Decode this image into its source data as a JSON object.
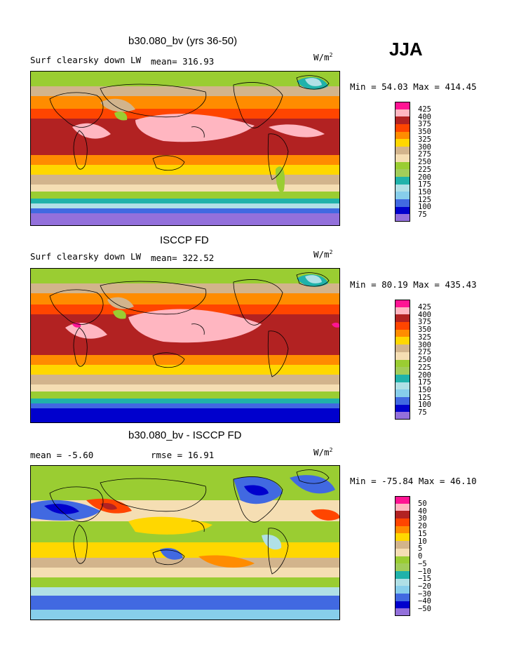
{
  "season": "JJA",
  "units_base": "W/m",
  "units_exp": "2",
  "palette": {
    "p425": "#ff1493",
    "p400": "#ffb6c1",
    "p375": "#b22222",
    "p350": "#ff4500",
    "p325": "#ff8c00",
    "p300": "#ffd700",
    "p275": "#d2b48c",
    "p250": "#f5deb3",
    "p225": "#9acd32",
    "p200": "#a2cd5a",
    "p175": "#20b2aa",
    "p150": "#b0e0e6",
    "p125": "#87ceeb",
    "p100": "#4169e1",
    "p75": "#0000cd",
    "p50": "#9370db"
  },
  "panels": [
    {
      "title": "b30.080_bv (yrs 36-50)",
      "field": "Surf clearsky down LW",
      "stat1": "mean= 316.93",
      "stat2": "",
      "minmax": "Min =  54.03 Max = 414.45",
      "levels": [
        "425",
        "400",
        "375",
        "350",
        "325",
        "300",
        "275",
        "250",
        "225",
        "200",
        "175",
        "150",
        "125",
        "100",
        "75"
      ]
    },
    {
      "title": "ISCCP FD",
      "field": "Surf clearsky down LW",
      "stat1": "mean= 322.52",
      "stat2": "",
      "minmax": "Min =  80.19 Max = 435.43",
      "levels": [
        "425",
        "400",
        "375",
        "350",
        "325",
        "300",
        "275",
        "250",
        "225",
        "200",
        "175",
        "150",
        "125",
        "100",
        "75"
      ]
    },
    {
      "title": "b30.080_bv - ISCCP FD",
      "field": "",
      "stat1": "mean =  -5.60",
      "stat2": "rmse =  16.91",
      "minmax": "Min = -75.84 Max =  46.10",
      "levels": [
        "50",
        "40",
        "30",
        "20",
        "15",
        "10",
        "5",
        "0",
        "−5",
        "−10",
        "−15",
        "−20",
        "−30",
        "−40",
        "−50"
      ]
    }
  ],
  "chart_data": [
    {
      "type": "heatmap",
      "title": "b30.080_bv (yrs 36-50)",
      "variable": "Surf clearsky down LW",
      "units": "W/m^2",
      "season": "JJA",
      "mean": 316.93,
      "min": 54.03,
      "max": 414.45,
      "contour_levels": [
        75,
        100,
        125,
        150,
        175,
        200,
        225,
        250,
        275,
        300,
        325,
        350,
        375,
        400,
        425
      ]
    },
    {
      "type": "heatmap",
      "title": "ISCCP FD",
      "variable": "Surf clearsky down LW",
      "units": "W/m^2",
      "season": "JJA",
      "mean": 322.52,
      "min": 80.19,
      "max": 435.43,
      "contour_levels": [
        75,
        100,
        125,
        150,
        175,
        200,
        225,
        250,
        275,
        300,
        325,
        350,
        375,
        400,
        425
      ]
    },
    {
      "type": "heatmap",
      "title": "b30.080_bv - ISCCP FD",
      "units": "W/m^2",
      "season": "JJA",
      "mean": -5.6,
      "rmse": 16.91,
      "min": -75.84,
      "max": 46.1,
      "contour_levels": [
        -50,
        -40,
        -30,
        -20,
        -15,
        -10,
        -5,
        0,
        5,
        10,
        15,
        20,
        30,
        40,
        50
      ]
    }
  ]
}
